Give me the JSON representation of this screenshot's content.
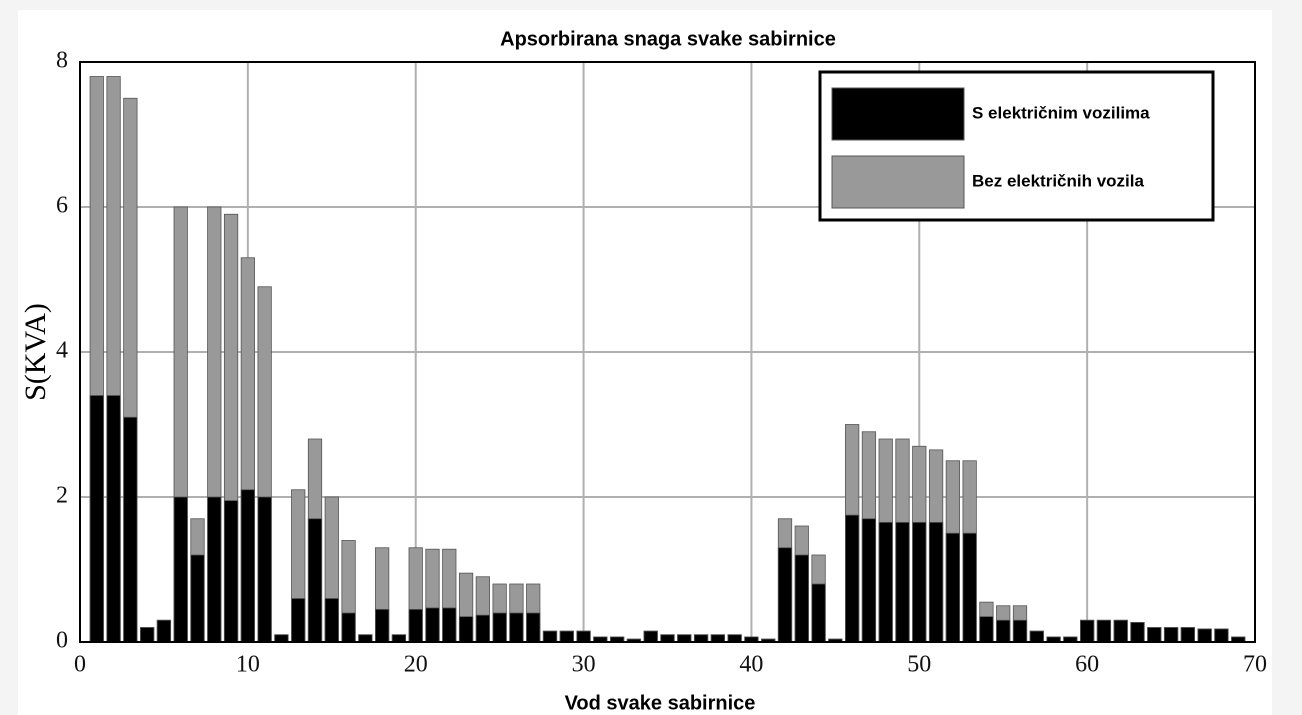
{
  "chart_data": {
    "type": "bar",
    "title": "Apsorbirana snaga svake sabirnice",
    "x_label": "Vod svake sabirnice",
    "y_label": "S(KVA)",
    "x": [
      1,
      2,
      3,
      4,
      5,
      6,
      7,
      8,
      9,
      10,
      11,
      12,
      13,
      14,
      15,
      16,
      17,
      18,
      19,
      20,
      21,
      22,
      23,
      24,
      25,
      26,
      27,
      28,
      29,
      30,
      31,
      32,
      33,
      34,
      35,
      36,
      37,
      38,
      39,
      40,
      41,
      42,
      43,
      44,
      45,
      46,
      47,
      48,
      49,
      50,
      51,
      52,
      53,
      54,
      55,
      56,
      57,
      58,
      59,
      60,
      61,
      62,
      63,
      64,
      65,
      66,
      67,
      68,
      69
    ],
    "series": [
      {
        "name": "S električnim vozilima",
        "color": "#000000",
        "values": [
          3.4,
          3.4,
          3.1,
          0.2,
          0.3,
          2.0,
          1.2,
          2.0,
          1.95,
          2.1,
          2.0,
          0.1,
          0.6,
          1.7,
          0.6,
          0.4,
          0.1,
          0.45,
          0.1,
          0.45,
          0.47,
          0.47,
          0.35,
          0.37,
          0.4,
          0.4,
          0.4,
          0.15,
          0.15,
          0.15,
          0.07,
          0.07,
          0.04,
          0.15,
          0.1,
          0.1,
          0.1,
          0.1,
          0.1,
          0.07,
          0.04,
          1.3,
          1.2,
          0.8,
          0.04,
          1.75,
          1.7,
          1.65,
          1.65,
          1.65,
          1.65,
          1.5,
          1.5,
          0.35,
          0.3,
          0.3,
          0.15,
          0.07,
          0.07,
          0.3,
          0.3,
          0.3,
          0.27,
          0.2,
          0.2,
          0.2,
          0.18,
          0.18,
          0.07
        ]
      },
      {
        "name": "Bez električnih vozila",
        "color": "#999999",
        "values": [
          7.8,
          7.8,
          7.5,
          0.2,
          0.3,
          6.0,
          1.7,
          6.0,
          5.9,
          5.3,
          4.9,
          0.1,
          2.1,
          2.8,
          2.0,
          1.4,
          0.1,
          1.3,
          0.1,
          1.3,
          1.28,
          1.28,
          0.95,
          0.9,
          0.8,
          0.8,
          0.8,
          0.15,
          0.15,
          0.15,
          0.07,
          0.07,
          0.04,
          0.15,
          0.1,
          0.1,
          0.1,
          0.1,
          0.1,
          0.07,
          0.04,
          1.7,
          1.6,
          1.2,
          0.04,
          3.0,
          2.9,
          2.8,
          2.8,
          2.7,
          2.65,
          2.5,
          2.5,
          0.55,
          0.5,
          0.5,
          0.15,
          0.07,
          0.07,
          0.3,
          0.3,
          0.3,
          0.27,
          0.2,
          0.2,
          0.2,
          0.18,
          0.18,
          0.07
        ]
      }
    ],
    "xlim": [
      0,
      70
    ],
    "xticks": [
      0,
      10,
      20,
      30,
      40,
      50,
      60,
      70
    ],
    "ylim": [
      0,
      8
    ],
    "yticks": [
      0,
      2,
      4,
      6,
      8
    ],
    "grid": true,
    "legend": "upper right"
  }
}
